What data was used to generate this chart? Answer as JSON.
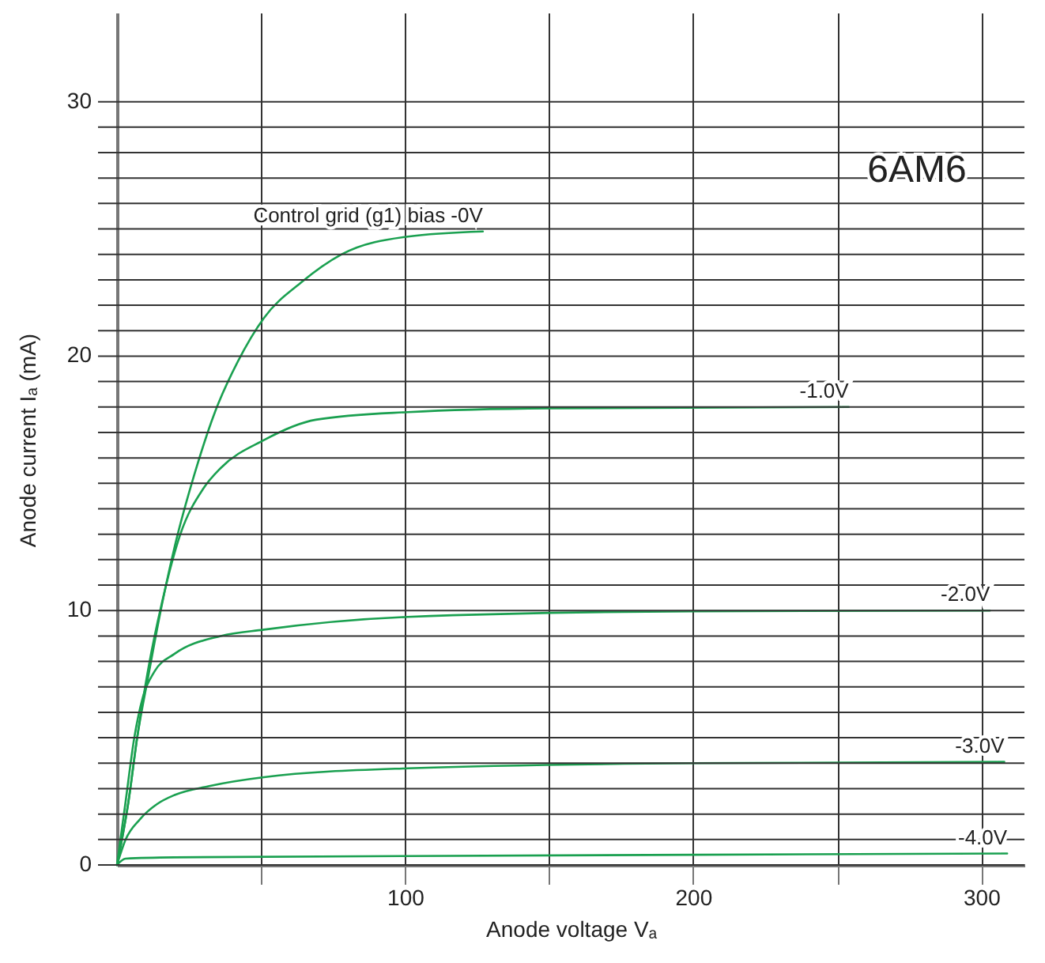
{
  "chart_data": {
    "type": "line",
    "xlabel": "Anode voltage Vₐ",
    "ylabel": "Anode current Iₐ (mA)",
    "annotations": [
      "6AM6"
    ],
    "xlim": [
      0,
      315
    ],
    "ylim": [
      0,
      33.5
    ],
    "xticks": [
      {
        "value": 50,
        "label": null
      },
      100,
      {
        "value": 150,
        "label": null
      },
      200,
      {
        "value": 250,
        "label": null
      },
      300
    ],
    "yticks": [
      0,
      {
        "value": 1,
        "label": null
      },
      {
        "value": 2,
        "label": null
      },
      {
        "value": 3,
        "label": null
      },
      {
        "value": 4,
        "label": null
      },
      {
        "value": 5,
        "label": null
      },
      {
        "value": 6,
        "label": null
      },
      {
        "value": 7,
        "label": null
      },
      {
        "value": 8,
        "label": null
      },
      {
        "value": 9,
        "label": null
      },
      10,
      {
        "value": 11,
        "label": null
      },
      {
        "value": 12,
        "label": null
      },
      {
        "value": 13,
        "label": null
      },
      {
        "value": 14,
        "label": null
      },
      {
        "value": 15,
        "label": null
      },
      {
        "value": 16,
        "label": null
      },
      {
        "value": 17,
        "label": null
      },
      {
        "value": 18,
        "label": null
      },
      {
        "value": 19,
        "label": null
      },
      20,
      {
        "value": 21,
        "label": null
      },
      {
        "value": 22,
        "label": null
      },
      {
        "value": 23,
        "label": null
      },
      {
        "value": 24,
        "label": null
      },
      {
        "value": 25,
        "label": null
      },
      {
        "value": 26,
        "label": null
      },
      {
        "value": 27,
        "label": null
      },
      {
        "value": 28,
        "label": null
      },
      {
        "value": 29,
        "label": null
      },
      30
    ],
    "grid": true,
    "marker": "none",
    "line_style": "solid",
    "series": [
      {
        "name": "Control grid (g1) bias -0V",
        "color": "#1aa050",
        "x": [
          0,
          4,
          7,
          11,
          15,
          20,
          27,
          34,
          42,
          51,
          64,
          78,
          101,
          127
        ],
        "values": [
          0,
          2.5,
          5,
          7.5,
          9.9,
          12.5,
          15.4,
          17.8,
          19.8,
          21.5,
          22.9,
          24,
          24.7,
          24.9
        ]
      },
      {
        "name": "-1.0V",
        "color": "#1aa050",
        "x": [
          0,
          4,
          7,
          11,
          16,
          22,
          30,
          36,
          51,
          69,
          101,
          150,
          254
        ],
        "values": [
          0,
          2.5,
          5,
          7.8,
          10.5,
          13,
          14.8,
          15.6,
          16.7,
          17.5,
          17.8,
          17.95,
          18
        ]
      },
      {
        "name": "-2.0V",
        "color": "#1aa050",
        "x": [
          0,
          3,
          6,
          9,
          13,
          20,
          36,
          51,
          101,
          200,
          303
        ],
        "values": [
          0,
          2.5,
          5,
          6.6,
          7.6,
          8.3,
          9,
          9.25,
          9.75,
          9.97,
          10
        ]
      },
      {
        "name": "-3.0V",
        "color": "#1aa050",
        "x": [
          0,
          3,
          8,
          14,
          20,
          32,
          51,
          101,
          200,
          308
        ],
        "values": [
          0,
          1,
          1.8,
          2.4,
          2.75,
          3.1,
          3.45,
          3.8,
          4,
          4.05
        ]
      },
      {
        "name": "-4.0V",
        "color": "#1aa050",
        "x": [
          0,
          3,
          20,
          100,
          200,
          309
        ],
        "values": [
          0,
          0.25,
          0.3,
          0.35,
          0.4,
          0.45
        ]
      }
    ]
  }
}
